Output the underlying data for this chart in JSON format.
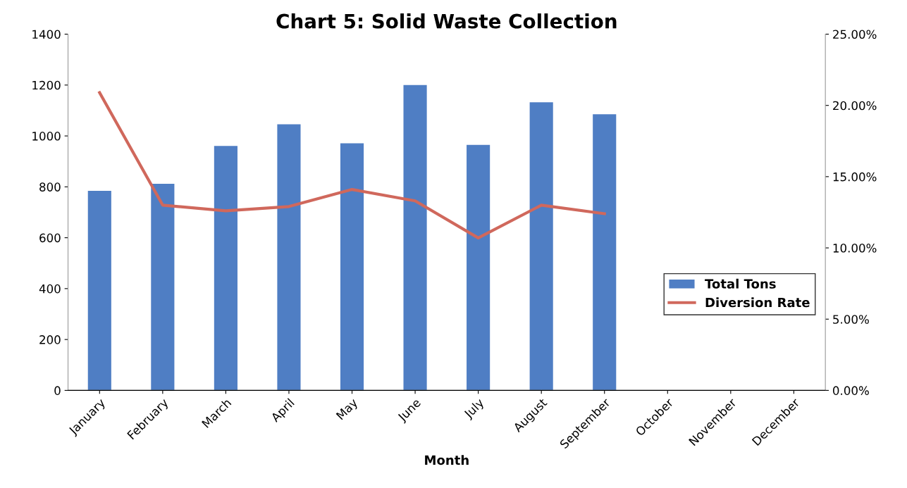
{
  "chart_data": {
    "type": "bar",
    "title": "Chart 5: Solid Waste Collection",
    "xlabel": "Month",
    "categories": [
      "January",
      "February",
      "March",
      "April",
      "May",
      "June",
      "July",
      "August",
      "September",
      "October",
      "November",
      "December"
    ],
    "series": [
      {
        "name": "Total Tons",
        "color": "#4f7ec4",
        "values": [
          784,
          812,
          961,
          1046,
          971,
          1200,
          965,
          1132,
          1085,
          null,
          null,
          null
        ]
      },
      {
        "name": "Diversion Rate",
        "type": "line",
        "color": "#d0685c",
        "axis": "y2",
        "values": [
          20.9,
          13.0,
          12.6,
          12.9,
          14.1,
          13.3,
          10.7,
          13.0,
          12.4,
          null,
          null,
          null
        ]
      }
    ],
    "ylim": [
      0,
      1400
    ],
    "yticks": [
      0,
      200,
      400,
      600,
      800,
      1000,
      1200,
      1400
    ],
    "y2lim": [
      0,
      25
    ],
    "y2ticks": [
      {
        "value": 0,
        "label": "0.00%"
      },
      {
        "value": 5,
        "label": "5.00%"
      },
      {
        "value": 10,
        "label": "10.00%"
      },
      {
        "value": 15,
        "label": "15.00%"
      },
      {
        "value": 20,
        "label": "20.00%"
      },
      {
        "value": 25,
        "label": "25.00%"
      }
    ],
    "legend": "right",
    "grid": false,
    "marker": "none",
    "line_style": "solid"
  }
}
